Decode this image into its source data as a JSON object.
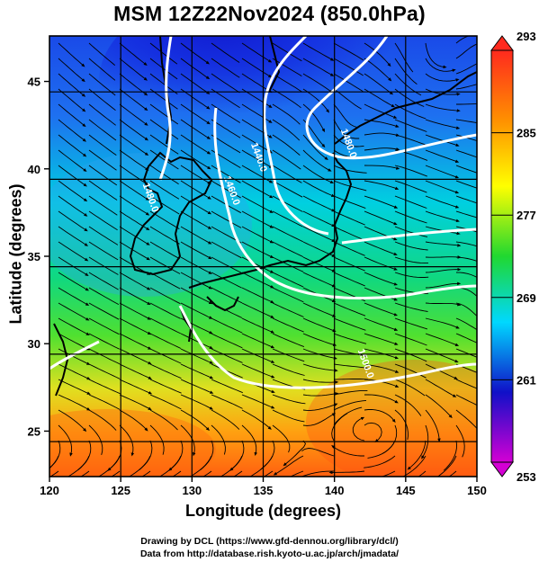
{
  "title": "MSM 12Z22Nov2024 (850.0hPa)",
  "chart_data": {
    "type": "heatmap",
    "title": "MSM 12Z22Nov2024 (850.0hPa)",
    "xlabel": "Longitude (degrees)",
    "ylabel": "Latitude  (degrees)",
    "xlim": [
      120,
      150
    ],
    "ylim": [
      22.4,
      47.6
    ],
    "x_ticks": [
      "120",
      "125",
      "130",
      "135",
      "140",
      "145",
      "150"
    ],
    "y_ticks": [
      "25",
      "30",
      "35",
      "40",
      "45"
    ],
    "x_tick_values": [
      120,
      125,
      130,
      135,
      140,
      145,
      150
    ],
    "y_tick_values": [
      25,
      30,
      35,
      40,
      45
    ],
    "grid": true,
    "colorbar": {
      "range": [
        253,
        293
      ],
      "tick_labels": [
        "293",
        "285",
        "277",
        "269",
        "261",
        "253"
      ],
      "tick_values": [
        293,
        285,
        277,
        269,
        261,
        253
      ],
      "colors": [
        "#d400d4",
        "#1010c8",
        "#00d8ff",
        "#20d830",
        "#ffff00",
        "#ff9000",
        "#ff2a1e"
      ]
    },
    "contours": [
      {
        "label": "1440.0",
        "lon": 134.5,
        "lat": 40.6
      },
      {
        "label": "1460.0",
        "lon": 132.6,
        "lat": 38.7
      },
      {
        "label": "1480.0",
        "lon": 126.9,
        "lat": 38.3
      },
      {
        "label": "1480.0",
        "lon": 140.8,
        "lat": 41.4
      },
      {
        "label": "1500.0",
        "lon": 142.0,
        "lat": 28.8
      }
    ],
    "overlay": "streamlines"
  },
  "credits": {
    "line1": "Drawing by DCL (https://www.gfd-dennou.org/library/dcl/)",
    "line2": "Data from http://database.rish.kyoto-u.ac.jp/arch/jmadata/"
  },
  "colors": {
    "cold_core": "#1010c8",
    "warm": "#ff7000",
    "contour": "#ffffff",
    "coast": "#000000"
  }
}
